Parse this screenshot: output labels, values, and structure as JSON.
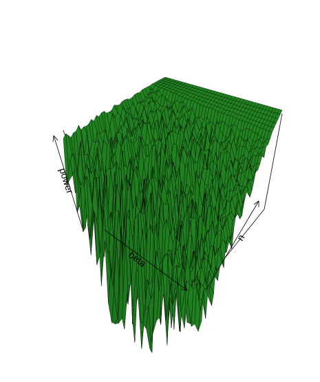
{
  "chart_data": {
    "type": "surface",
    "title": "",
    "axes": {
      "x": {
        "label": "beta"
      },
      "y": {
        "label": "n"
      },
      "z": {
        "label": "power"
      }
    },
    "ticks": false,
    "grid": false,
    "box": true,
    "surface": {
      "color": "#228B22",
      "edge_color": "#000000",
      "description_plateau_level": 1.0,
      "resolution": 40
    }
  }
}
